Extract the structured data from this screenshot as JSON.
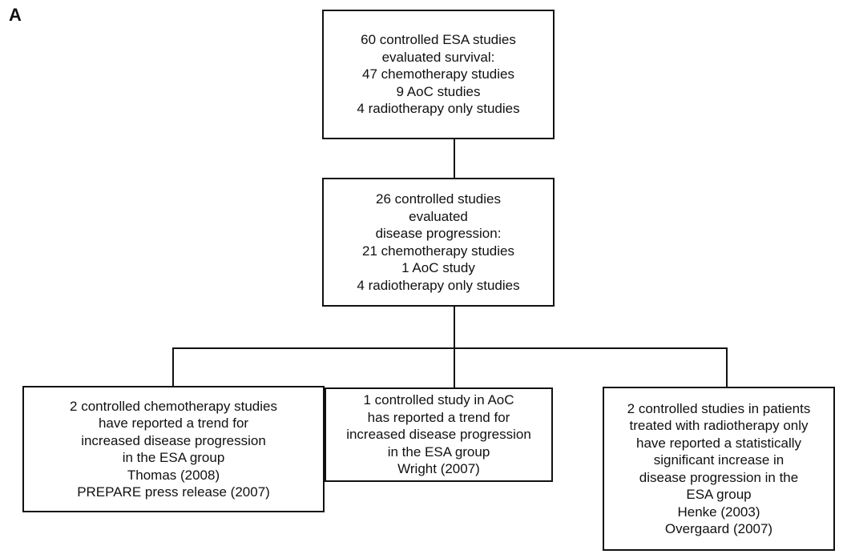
{
  "panel_label": "A",
  "boxes": {
    "top": {
      "lines": [
        "60 controlled ESA studies",
        "evaluated survival:",
        "47 chemotherapy studies",
        "9 AoC studies",
        "4 radiotherapy only studies"
      ]
    },
    "middle": {
      "lines": [
        "26 controlled studies",
        "evaluated",
        "disease progression:",
        "21 chemotherapy studies",
        "1 AoC study",
        "4 radiotherapy only studies"
      ]
    },
    "left": {
      "lines": [
        "2 controlled chemotherapy studies",
        "have reported a trend for",
        "increased disease progression",
        "in the ESA group",
        "Thomas (2008)",
        "PREPARE press release (2007)"
      ]
    },
    "center": {
      "lines": [
        "1 controlled study in AoC",
        "has reported a trend for",
        "increased disease progression",
        "in the ESA group",
        "Wright (2007)"
      ]
    },
    "right": {
      "lines": [
        "2 controlled studies in patients",
        "treated with radiotherapy only",
        "have reported a statistically",
        "significant increase in",
        "disease progression in the",
        "ESA group",
        "Henke (2003)",
        "Overgaard (2007)"
      ]
    }
  }
}
